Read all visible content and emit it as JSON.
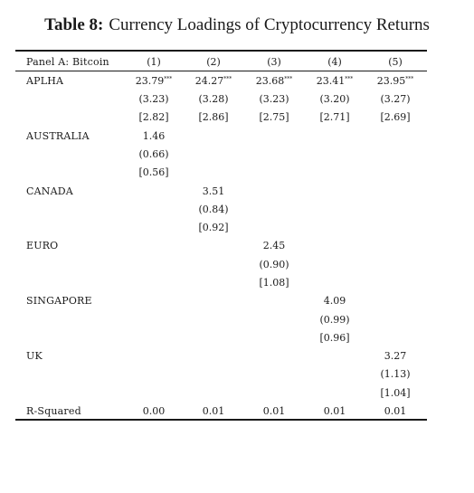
{
  "caption": {
    "label": "Table 8:",
    "text": "Currency Loadings of Cryptocurrency Returns"
  },
  "header": {
    "panel": "Panel A: Bitcoin",
    "columns": [
      "(1)",
      "(2)",
      "(3)",
      "(4)",
      "(5)"
    ]
  },
  "rows": {
    "alpha": {
      "label": "APLHA",
      "coef": [
        "23.79",
        "24.27",
        "23.68",
        "23.41",
        "23.95"
      ],
      "stars": [
        "***",
        "***",
        "***",
        "***",
        "***"
      ],
      "t1": [
        "(3.23)",
        "(3.28)",
        "(3.23)",
        "(3.20)",
        "(3.27)"
      ],
      "t2": [
        "[2.82]",
        "[2.86]",
        "[2.75]",
        "[2.71]",
        "[2.69]"
      ]
    },
    "australia": {
      "label": "AUSTRALIA",
      "coef": "1.46",
      "t1": "(0.66)",
      "t2": "[0.56]"
    },
    "canada": {
      "label": "CANADA",
      "coef": "3.51",
      "t1": "(0.84)",
      "t2": "[0.92]"
    },
    "euro": {
      "label": "EURO",
      "coef": "2.45",
      "t1": "(0.90)",
      "t2": "[1.08]"
    },
    "singapore": {
      "label": "SINGAPORE",
      "coef": "4.09",
      "t1": "(0.99)",
      "t2": "[0.96]"
    },
    "uk": {
      "label": "UK",
      "coef": "3.27",
      "t1": "(1.13)",
      "t2": "[1.04]"
    },
    "rsquared": {
      "label": "R-Squared",
      "values": [
        "0.00",
        "0.01",
        "0.01",
        "0.01",
        "0.01"
      ]
    }
  }
}
